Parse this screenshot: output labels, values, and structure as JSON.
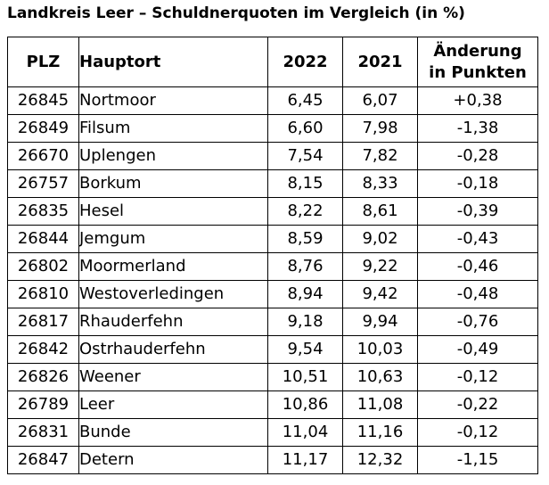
{
  "title": "Landkreis Leer – Schuldnerquoten im Vergleich (in %)",
  "table": {
    "headers": {
      "plz": "PLZ",
      "hauptort": "Hauptort",
      "y2022": "2022",
      "y2021": "2021",
      "change_line1": "Änderung",
      "change_line2": "in Punkten"
    },
    "rows": [
      {
        "plz": "26845",
        "ort": "Nortmoor",
        "y2022": "6,45",
        "y2021": "6,07",
        "change": "+0,38"
      },
      {
        "plz": "26849",
        "ort": "Filsum",
        "y2022": "6,60",
        "y2021": "7,98",
        "change": "-1,38"
      },
      {
        "plz": "26670",
        "ort": "Uplengen",
        "y2022": "7,54",
        "y2021": "7,82",
        "change": "-0,28"
      },
      {
        "plz": "26757",
        "ort": "Borkum",
        "y2022": "8,15",
        "y2021": "8,33",
        "change": "-0,18"
      },
      {
        "plz": "26835",
        "ort": "Hesel",
        "y2022": "8,22",
        "y2021": "8,61",
        "change": "-0,39"
      },
      {
        "plz": "26844",
        "ort": "Jemgum",
        "y2022": "8,59",
        "y2021": "9,02",
        "change": "-0,43"
      },
      {
        "plz": "26802",
        "ort": "Moormerland",
        "y2022": "8,76",
        "y2021": "9,22",
        "change": "-0,46"
      },
      {
        "plz": "26810",
        "ort": "Westoverledingen",
        "y2022": "8,94",
        "y2021": "9,42",
        "change": "-0,48"
      },
      {
        "plz": "26817",
        "ort": "Rhauderfehn",
        "y2022": "9,18",
        "y2021": "9,94",
        "change": "-0,76"
      },
      {
        "plz": "26842",
        "ort": "Ostrhauderfehn",
        "y2022": "9,54",
        "y2021": "10,03",
        "change": "-0,49"
      },
      {
        "plz": "26826",
        "ort": "Weener",
        "y2022": "10,51",
        "y2021": "10,63",
        "change": "-0,12"
      },
      {
        "plz": "26789",
        "ort": "Leer",
        "y2022": "10,86",
        "y2021": "11,08",
        "change": "-0,22"
      },
      {
        "plz": "26831",
        "ort": "Bunde",
        "y2022": "11,04",
        "y2021": "11,16",
        "change": "-0,12"
      },
      {
        "plz": "26847",
        "ort": "Detern",
        "y2022": "11,17",
        "y2021": "12,32",
        "change": "-1,15"
      }
    ]
  }
}
